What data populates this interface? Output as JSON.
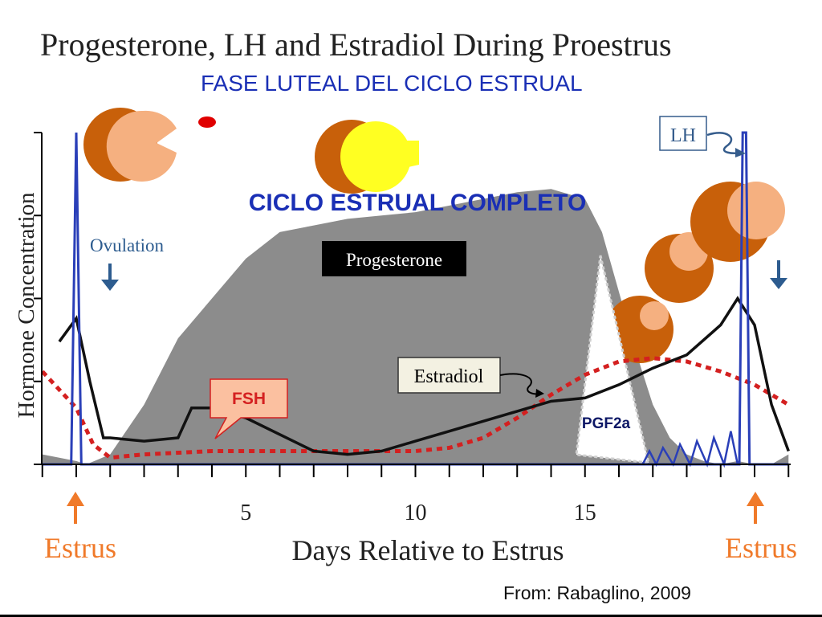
{
  "title": "Progesterone, LH and Estradiol During Proestrus",
  "subtitle": "FASE LUTEAL DEL CICLO ESTRUAL",
  "credit": "From: Rabaglino, 2009",
  "colors": {
    "progesterone": "#8c8c8c",
    "lh": "#2a3fb8",
    "estradiol": "#111111",
    "fsh": "#d42020",
    "pgf2a": "#2a3fb8",
    "estrus": "#f07a2a",
    "arrow_ovulation": "#2d5c8f",
    "headline": "#1a2fb5",
    "follicle_dark": "#c8600a",
    "follicle_light": "#f5b080",
    "corpus_luteum": "#ffff22"
  },
  "chart_data": {
    "type": "area",
    "xlabel": "Days Relative to Estrus",
    "ylabel": "Hormone Concentration",
    "x_ticks": [
      5,
      10,
      15
    ],
    "xlim": [
      -1,
      21
    ],
    "ylim": [
      0,
      100
    ],
    "y_tick_values": [
      0,
      25,
      50,
      75,
      100
    ],
    "grid": false,
    "series": [
      {
        "name": "Progesterone",
        "style": "filled-area",
        "color": "#8c8c8c",
        "x": [
          -1,
          0,
          0.3,
          1,
          2,
          3,
          4,
          5,
          6,
          7,
          8,
          9,
          10,
          11,
          12,
          13,
          14,
          15,
          15.5,
          16,
          16.5,
          17,
          17.5,
          18,
          18.5,
          19,
          19.5,
          20,
          20.5,
          21
        ],
        "values": [
          3,
          1,
          0,
          3,
          18,
          38,
          50,
          62,
          70,
          72,
          74,
          75,
          76,
          78,
          80,
          82,
          83,
          80,
          70,
          52,
          34,
          18,
          8,
          3,
          1,
          0,
          1,
          0,
          0,
          3
        ]
      },
      {
        "name": "LH",
        "style": "line",
        "color": "#2a3fb8",
        "x": [
          -1,
          -0.15,
          0,
          0.15,
          0.5,
          1,
          2,
          3,
          4,
          5,
          6,
          7,
          8,
          9,
          10,
          11,
          12,
          13,
          14,
          15,
          16,
          17,
          18,
          19,
          19.55,
          19.65,
          19.75,
          19.85,
          20,
          21
        ],
        "values": [
          0,
          0,
          100,
          0,
          0,
          0,
          0,
          0,
          0,
          0,
          0,
          0,
          0,
          0,
          0,
          0,
          0,
          0,
          0,
          0,
          0,
          0,
          0,
          0,
          0,
          100,
          100,
          0,
          0,
          0
        ]
      },
      {
        "name": "Estradiol",
        "style": "line",
        "color": "#111111",
        "x": [
          -0.5,
          0,
          0.4,
          0.8,
          1,
          2,
          3,
          3.4,
          4,
          5,
          6,
          7,
          8,
          9,
          10,
          11,
          12,
          13,
          14,
          15,
          16,
          17,
          18,
          19,
          19.5,
          20,
          20.5,
          21
        ],
        "values": [
          37,
          44,
          25,
          8,
          8,
          7,
          8,
          17,
          17,
          14,
          9,
          4,
          3,
          4,
          7,
          10,
          13,
          16,
          19,
          20,
          24,
          29,
          33,
          42,
          50,
          42,
          18,
          4
        ]
      },
      {
        "name": "FSH",
        "style": "dotted-line",
        "color": "#d42020",
        "x": [
          -1,
          0,
          0.5,
          1,
          2,
          4,
          6,
          8,
          10,
          11,
          12,
          13,
          14,
          15,
          16,
          17,
          18,
          19,
          20,
          21
        ],
        "values": [
          28,
          17,
          6,
          2,
          3,
          4,
          4,
          4,
          4,
          5,
          8,
          14,
          21,
          27,
          31,
          32,
          31,
          28,
          24,
          18
        ]
      },
      {
        "name": "PGF2a",
        "style": "pulses",
        "color": "#2a3fb8",
        "x": [
          16.9,
          17.3,
          17.8,
          18.3,
          18.8,
          19.3
        ],
        "values": [
          4,
          5,
          6,
          7,
          8,
          10
        ]
      }
    ],
    "annotations": {
      "fsh": "FSH",
      "estradiol": "Estradiol",
      "progesterone": "Progesterone",
      "lh": "LH",
      "pgf2a": "PGF2a",
      "ovulation": "Ovulation",
      "headline": "CICLO ESTRUAL COMPLETO",
      "estrus_left": "Estrus",
      "estrus_right": "Estrus"
    }
  }
}
